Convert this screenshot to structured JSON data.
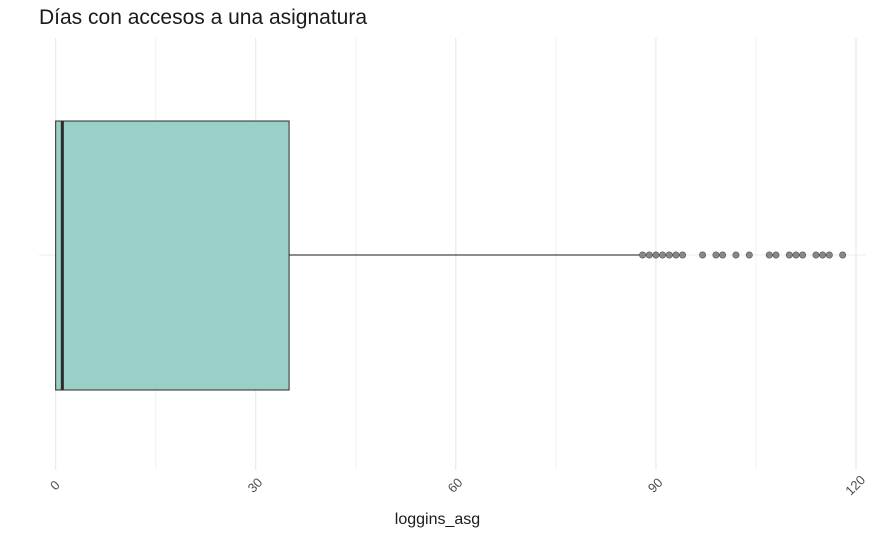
{
  "chart_data": {
    "type": "boxplot",
    "title": "Días con accesos a una asignatura",
    "xlabel": "loggins_asg",
    "ylabel": "",
    "xlim": [
      -2.5,
      121.5
    ],
    "x_ticks": [
      0,
      30,
      60,
      90,
      120
    ],
    "x_tick_labels": [
      "0",
      "30",
      "60",
      "90",
      "120"
    ],
    "grid": true,
    "box": {
      "min": 0,
      "q1": 0,
      "median": 1,
      "q3": 35,
      "whisker_high": 87.5,
      "fill": "#99cfc6",
      "outliers": [
        88,
        89,
        90,
        91,
        92,
        93,
        94,
        97,
        99,
        100,
        102,
        104,
        107,
        108,
        110,
        111,
        112,
        114,
        115,
        116,
        118
      ]
    }
  }
}
